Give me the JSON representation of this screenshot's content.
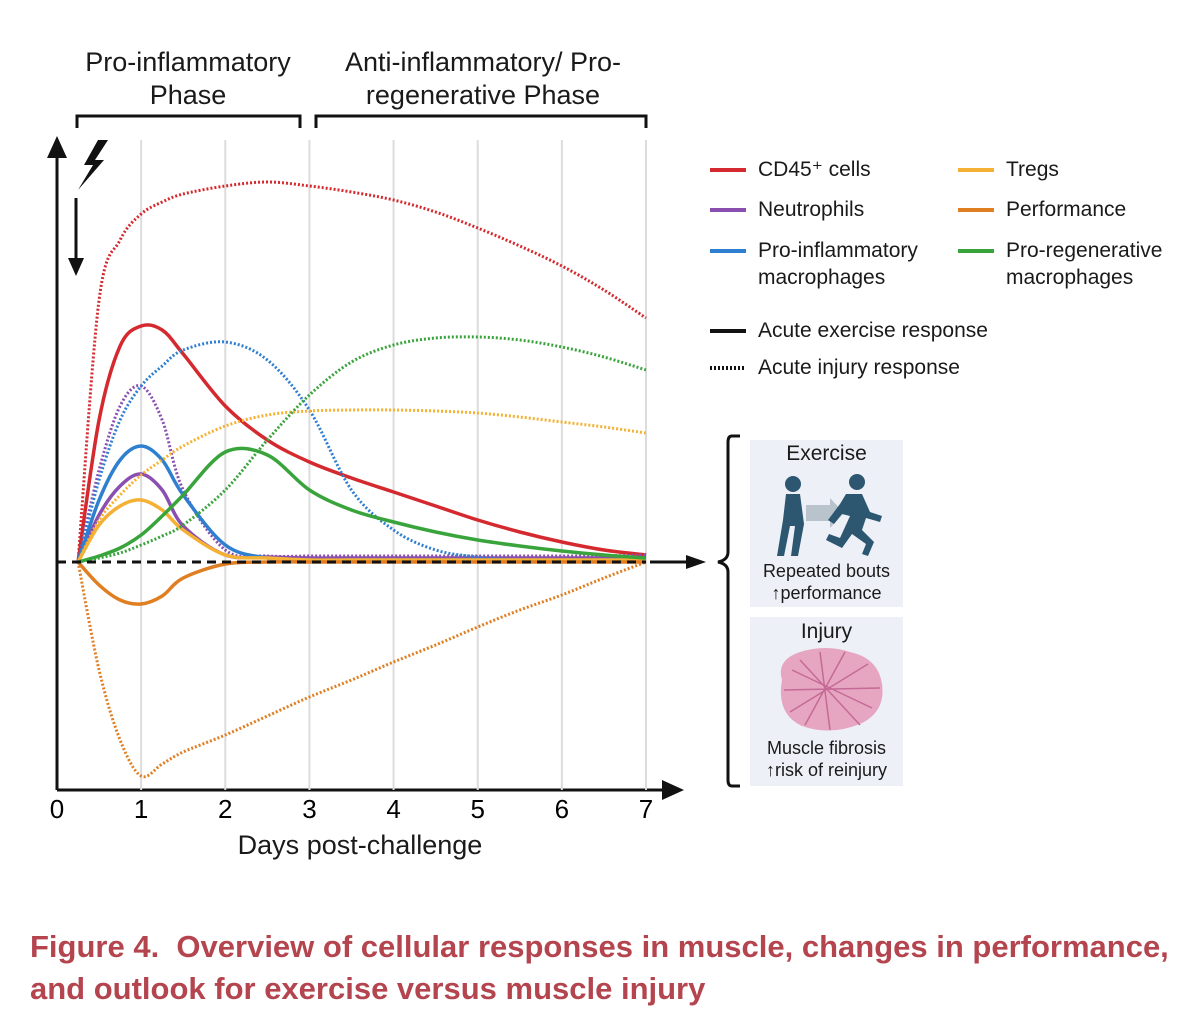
{
  "chart_data": {
    "type": "line",
    "phases": [
      "Pro-inflammatory Phase",
      "Anti-inflammatory/ Pro-regenerative Phase"
    ],
    "x_label": "Days post-challenge",
    "x": [
      0.25,
      0.5,
      0.75,
      1,
      1.25,
      1.5,
      2,
      2.5,
      3,
      3.5,
      4,
      4.5,
      5,
      5.5,
      6,
      6.5,
      7
    ],
    "xlim": [
      0,
      7
    ],
    "xticks": [
      0,
      1,
      2,
      3,
      4,
      5,
      6,
      7
    ],
    "ylim": [
      -57,
      105
    ],
    "series": [
      {
        "name": "CD45⁺ cells",
        "color": "#d42a2f",
        "exercise_values": [
          0,
          35.5,
          54,
          59,
          58,
          52,
          39,
          30.5,
          25,
          21,
          17.5,
          14,
          10.5,
          7.5,
          5,
          3,
          1.75
        ],
        "injury_values": [
          0,
          65.5,
          80.5,
          87,
          90,
          92,
          94,
          95,
          94,
          92.5,
          90.5,
          87.5,
          83.5,
          79,
          74,
          68,
          61
        ]
      },
      {
        "name": "Neutrophils",
        "color": "#8a4fb0",
        "exercise_values": [
          0,
          11.75,
          19,
          22,
          18,
          9,
          1.75,
          1.25,
          1,
          1,
          1,
          1,
          1,
          1,
          1,
          1,
          1
        ],
        "injury_values": [
          0,
          23,
          39,
          44,
          35.5,
          18,
          3,
          1.5,
          1.5,
          1.5,
          1.5,
          1.5,
          1.5,
          1.5,
          1.5,
          1.5,
          1.75
        ]
      },
      {
        "name": "Pro-inflammatory macrophages",
        "color": "#2f7fd0",
        "exercise_values": [
          0,
          15.5,
          25.5,
          29,
          25.5,
          16.75,
          4.25,
          1,
          0.5,
          0.5,
          0.5,
          0.5,
          0.5,
          0.5,
          0.5,
          0.5,
          0.5
        ],
        "injury_values": [
          0,
          20.5,
          35.5,
          44,
          49,
          53,
          55,
          50.5,
          38,
          18,
          8,
          3,
          1.25,
          0.5,
          0.5,
          0.5,
          0.5
        ]
      },
      {
        "name": "Tregs",
        "color": "#f5b133",
        "exercise_values": [
          0,
          9.25,
          14,
          15.5,
          13,
          8,
          1.75,
          1,
          0.5,
          0.5,
          0.5,
          0.5,
          0.5,
          0.5,
          0.5,
          0.5,
          0.5
        ],
        "injury_values": [
          0,
          10.5,
          16.75,
          21.75,
          25.5,
          29,
          34,
          36.75,
          37.75,
          38,
          38,
          37.75,
          37.25,
          36.25,
          35,
          33.75,
          32.25
        ]
      },
      {
        "name": "Performance",
        "color": "#e07e22",
        "exercise_values": [
          0,
          -5.75,
          -9.5,
          -10.5,
          -8.5,
          -4,
          -0.5,
          0,
          0,
          0,
          0,
          0,
          0,
          0,
          0,
          0,
          0
        ],
        "injury_values": [
          0,
          -27,
          -44.5,
          -53.5,
          -50.5,
          -47.5,
          -43.25,
          -38.5,
          -33.75,
          -29.5,
          -25,
          -20.75,
          -16.25,
          -12,
          -8.25,
          -4,
          0
        ]
      },
      {
        "name": "Pro-regenerative macrophages",
        "color": "#3aa43c",
        "exercise_values": [
          0,
          1.5,
          3.5,
          6.75,
          11.5,
          16.75,
          27.5,
          26.75,
          18,
          13,
          10,
          7.5,
          5.5,
          4,
          2.75,
          1.75,
          1
        ],
        "injury_values": [
          0,
          1,
          2.25,
          4.25,
          6.5,
          9.25,
          18,
          30.5,
          41.75,
          50,
          54.25,
          56,
          56.25,
          55.5,
          53.75,
          51.25,
          48
        ]
      }
    ],
    "line_styles": [
      {
        "label": "Acute exercise response",
        "style": "solid"
      },
      {
        "label": "Acute injury response",
        "style": "dotted"
      }
    ],
    "outlook": [
      {
        "title": "Exercise",
        "lines": [
          "Repeated bouts",
          "↑performance"
        ]
      },
      {
        "title": "Injury",
        "lines": [
          "Muscle fibrosis",
          "↑risk of reinjury"
        ]
      }
    ],
    "caption": "Figure 4.  Overview of cellular responses in muscle, changes in performance, and outlook for exercise versus muscle injury"
  }
}
